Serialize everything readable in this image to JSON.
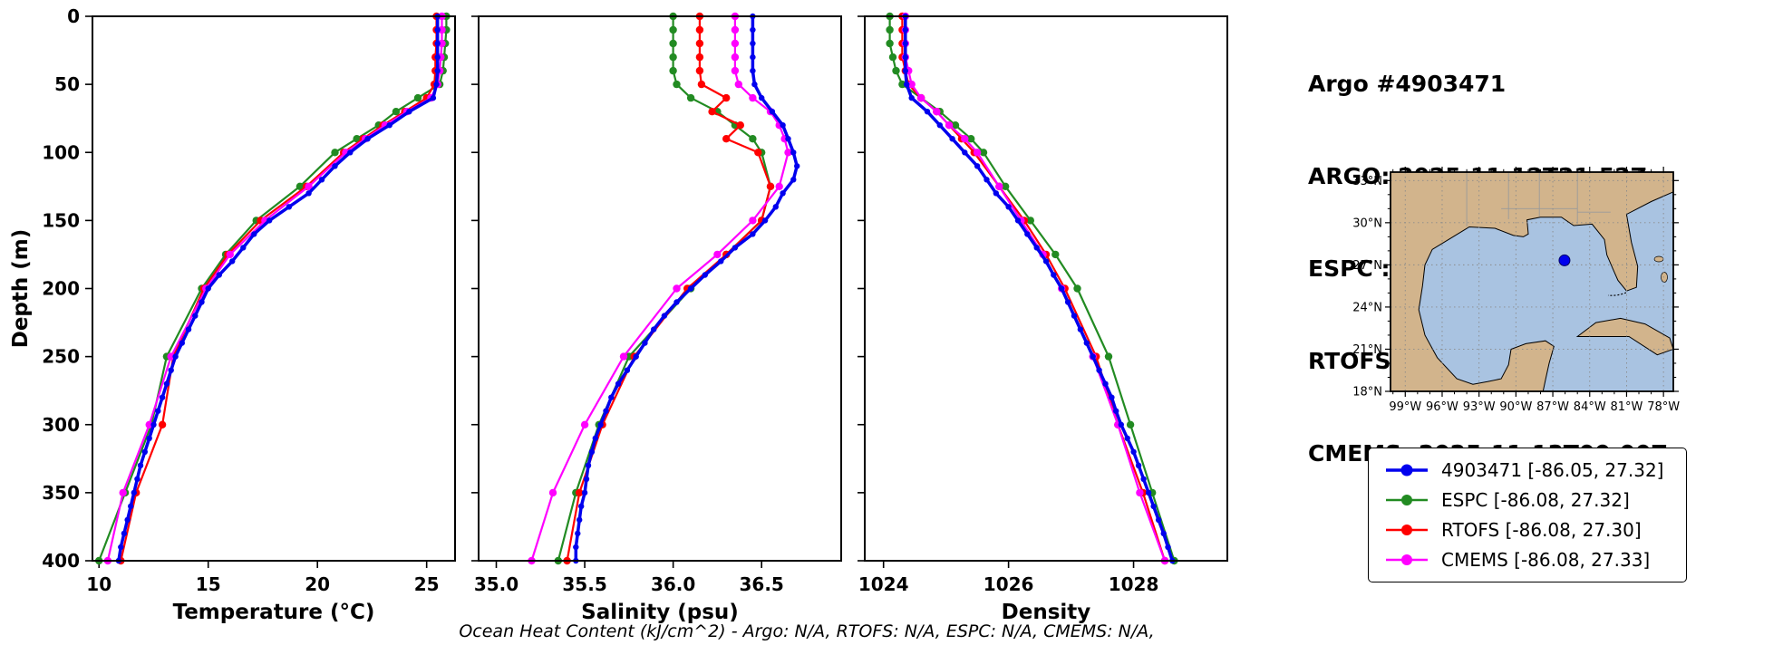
{
  "header": {
    "title": "Argo #4903471",
    "lines": [
      "ARGO: 2025-11-12T21:52Z",
      "ESPC : 2025-11-12T21:00Z",
      "RTOFS: 2025-11-13T00:00Z",
      "CMEMS: 2025-11-13T00:00Z"
    ]
  },
  "footer": {
    "ohc_text": "Ocean Heat Content (kJ/cm^2) - Argo: N/A,  RTOFS: N/A,  ESPC: N/A,  CMEMS: N/A,"
  },
  "legend": {
    "items": [
      {
        "label": "4903471 [-86.05, 27.32]",
        "color": "#0000ee"
      },
      {
        "label": "ESPC [-86.08, 27.32]",
        "color": "#228b22"
      },
      {
        "label": "RTOFS [-86.08, 27.30]",
        "color": "#ff0000"
      },
      {
        "label": "CMEMS [-86.08, 27.33]",
        "color": "#ff00ff"
      }
    ]
  },
  "map": {
    "water_color": "#a9c3e1",
    "land_color": "#d2b48c",
    "lat_ticks": [
      "33°N",
      "30°N",
      "27°N",
      "24°N",
      "21°N",
      "18°N"
    ],
    "lat_tick_values": [
      33,
      30,
      27,
      24,
      21,
      18
    ],
    "lon_ticks": [
      "99°W",
      "96°W",
      "93°W",
      "90°W",
      "87°W",
      "84°W",
      "81°W",
      "78°W"
    ],
    "lon_tick_values": [
      -99,
      -96,
      -93,
      -90,
      -87,
      -84,
      -81,
      -78
    ],
    "float_marker": {
      "lon": -86.05,
      "lat": 27.32,
      "color": "#0000ee"
    }
  },
  "chart_data": {
    "type": "line",
    "profile": "depth",
    "ylabel": "Depth (m)",
    "ylim": [
      0,
      400
    ],
    "y_ticks": [
      0,
      50,
      100,
      150,
      200,
      250,
      300,
      350,
      400
    ],
    "series_meta": [
      {
        "name": "4903471",
        "color": "#0000ee",
        "line_width": 3.5,
        "marker_radius": 3.2
      },
      {
        "name": "ESPC",
        "color": "#228b22",
        "line_width": 2.2,
        "marker_radius": 4.2
      },
      {
        "name": "RTOFS",
        "color": "#ff0000",
        "line_width": 2.2,
        "marker_radius": 4.2
      },
      {
        "name": "CMEMS",
        "color": "#ff00ff",
        "line_width": 2.2,
        "marker_radius": 4.2
      }
    ],
    "argo_depths": [
      0,
      10,
      20,
      30,
      40,
      50,
      60,
      70,
      80,
      90,
      100,
      110,
      120,
      130,
      140,
      150,
      160,
      170,
      180,
      190,
      200,
      210,
      220,
      230,
      240,
      250,
      260,
      270,
      280,
      290,
      300,
      310,
      320,
      330,
      340,
      350,
      360,
      370,
      380,
      390,
      400
    ],
    "model_depths": [
      0,
      10,
      20,
      30,
      40,
      50,
      60,
      70,
      80,
      90,
      100,
      125,
      150,
      175,
      200,
      250,
      300,
      350,
      400
    ],
    "panels": [
      {
        "xlabel": "Temperature (°C)",
        "xlim": [
          9.7,
          26.3
        ],
        "x_ticks": [
          10,
          15,
          20,
          25
        ],
        "x_tick_labels": [
          "10",
          "15",
          "20",
          "25"
        ],
        "series": [
          {
            "name": "4903471",
            "depths_ref": "argo_depths",
            "values": [
              25.5,
              25.5,
              25.5,
              25.5,
              25.5,
              25.45,
              25.3,
              24.2,
              23.3,
              22.3,
              21.5,
              20.8,
              20.2,
              19.6,
              18.7,
              17.8,
              17.1,
              16.6,
              16.1,
              15.5,
              15.0,
              14.7,
              14.4,
              14.1,
              13.8,
              13.5,
              13.3,
              13.1,
              12.9,
              12.7,
              12.5,
              12.3,
              12.1,
              11.9,
              11.75,
              11.6,
              11.45,
              11.3,
              11.15,
              11.0,
              10.9
            ]
          },
          {
            "name": "ESPC",
            "depths_ref": "model_depths",
            "values": [
              25.9,
              25.9,
              25.85,
              25.8,
              25.75,
              25.6,
              24.6,
              23.6,
              22.8,
              21.8,
              20.8,
              19.2,
              17.2,
              15.8,
              14.7,
              13.1,
              12.4,
              11.2,
              10.0
            ]
          },
          {
            "name": "RTOFS",
            "depths_ref": "model_depths",
            "values": [
              25.45,
              25.45,
              25.45,
              25.4,
              25.4,
              25.35,
              25.0,
              24.0,
              23.0,
              22.1,
              21.2,
              19.5,
              17.4,
              15.9,
              14.8,
              13.4,
              12.9,
              11.7,
              11.0
            ]
          },
          {
            "name": "CMEMS",
            "depths_ref": "model_depths",
            "values": [
              25.7,
              25.7,
              25.7,
              25.65,
              25.6,
              25.5,
              25.2,
              24.1,
              23.1,
              22.2,
              21.3,
              19.6,
              17.6,
              16.0,
              14.9,
              13.3,
              12.3,
              11.1,
              10.4
            ]
          }
        ]
      },
      {
        "xlabel": "Salinity (psu)",
        "xlim": [
          34.9,
          36.95
        ],
        "x_ticks": [
          35.0,
          35.5,
          36.0,
          36.5
        ],
        "x_tick_labels": [
          "35.0",
          "35.5",
          "36.0",
          "36.5"
        ],
        "series": [
          {
            "name": "4903471",
            "depths_ref": "argo_depths",
            "values": [
              36.45,
              36.45,
              36.45,
              36.45,
              36.45,
              36.46,
              36.5,
              36.56,
              36.62,
              36.65,
              36.68,
              36.7,
              36.68,
              36.62,
              36.58,
              36.52,
              36.45,
              36.35,
              36.27,
              36.18,
              36.1,
              36.02,
              35.95,
              35.89,
              35.84,
              35.79,
              35.74,
              35.69,
              35.65,
              35.62,
              35.59,
              35.56,
              35.54,
              35.52,
              35.51,
              35.5,
              35.48,
              35.47,
              35.46,
              35.45,
              35.45
            ]
          },
          {
            "name": "ESPC",
            "depths_ref": "model_depths",
            "values": [
              36.0,
              36.0,
              36.0,
              36.0,
              36.0,
              36.02,
              36.1,
              36.25,
              36.35,
              36.45,
              36.5,
              36.55,
              36.5,
              36.3,
              36.1,
              35.75,
              35.58,
              35.45,
              35.35
            ]
          },
          {
            "name": "RTOFS",
            "depths_ref": "model_depths",
            "values": [
              36.15,
              36.15,
              36.15,
              36.15,
              36.15,
              36.16,
              36.3,
              36.22,
              36.38,
              36.3,
              36.48,
              36.55,
              36.5,
              36.3,
              36.08,
              35.78,
              35.6,
              35.47,
              35.4
            ]
          },
          {
            "name": "CMEMS",
            "depths_ref": "model_depths",
            "values": [
              36.35,
              36.35,
              36.35,
              36.35,
              36.35,
              36.37,
              36.45,
              36.55,
              36.6,
              36.63,
              36.65,
              36.6,
              36.45,
              36.25,
              36.02,
              35.72,
              35.5,
              35.32,
              35.2
            ]
          }
        ]
      },
      {
        "xlabel": "Density",
        "xlim": [
          1023.7,
          1029.5
        ],
        "x_ticks": [
          1024,
          1026,
          1028
        ],
        "x_tick_labels": [
          "1024",
          "1026",
          "1028"
        ],
        "series": [
          {
            "name": "4903471",
            "depths_ref": "argo_depths",
            "values": [
              1024.35,
              1024.35,
              1024.35,
              1024.35,
              1024.35,
              1024.37,
              1024.45,
              1024.7,
              1024.9,
              1025.1,
              1025.3,
              1025.5,
              1025.65,
              1025.8,
              1026.0,
              1026.15,
              1026.3,
              1026.45,
              1026.6,
              1026.72,
              1026.85,
              1026.95,
              1027.05,
              1027.15,
              1027.25,
              1027.35,
              1027.45,
              1027.55,
              1027.65,
              1027.72,
              1027.8,
              1027.9,
              1028.0,
              1028.08,
              1028.16,
              1028.24,
              1028.32,
              1028.4,
              1028.48,
              1028.55,
              1028.62
            ]
          },
          {
            "name": "ESPC",
            "depths_ref": "model_depths",
            "values": [
              1024.1,
              1024.1,
              1024.1,
              1024.15,
              1024.2,
              1024.3,
              1024.6,
              1024.9,
              1025.15,
              1025.4,
              1025.6,
              1025.95,
              1026.35,
              1026.75,
              1027.1,
              1027.6,
              1027.95,
              1028.3,
              1028.65
            ]
          },
          {
            "name": "RTOFS",
            "depths_ref": "model_depths",
            "values": [
              1024.3,
              1024.3,
              1024.3,
              1024.3,
              1024.35,
              1024.4,
              1024.6,
              1024.85,
              1025.05,
              1025.25,
              1025.45,
              1025.85,
              1026.25,
              1026.6,
              1026.9,
              1027.4,
              1027.75,
              1028.15,
              1028.5
            ]
          },
          {
            "name": "CMEMS",
            "depths_ref": "model_depths",
            "values": [
              1024.35,
              1024.35,
              1024.35,
              1024.35,
              1024.4,
              1024.45,
              1024.6,
              1024.85,
              1025.05,
              1025.3,
              1025.5,
              1025.85,
              1026.2,
              1026.55,
              1026.85,
              1027.35,
              1027.75,
              1028.1,
              1028.5
            ]
          }
        ]
      }
    ]
  }
}
